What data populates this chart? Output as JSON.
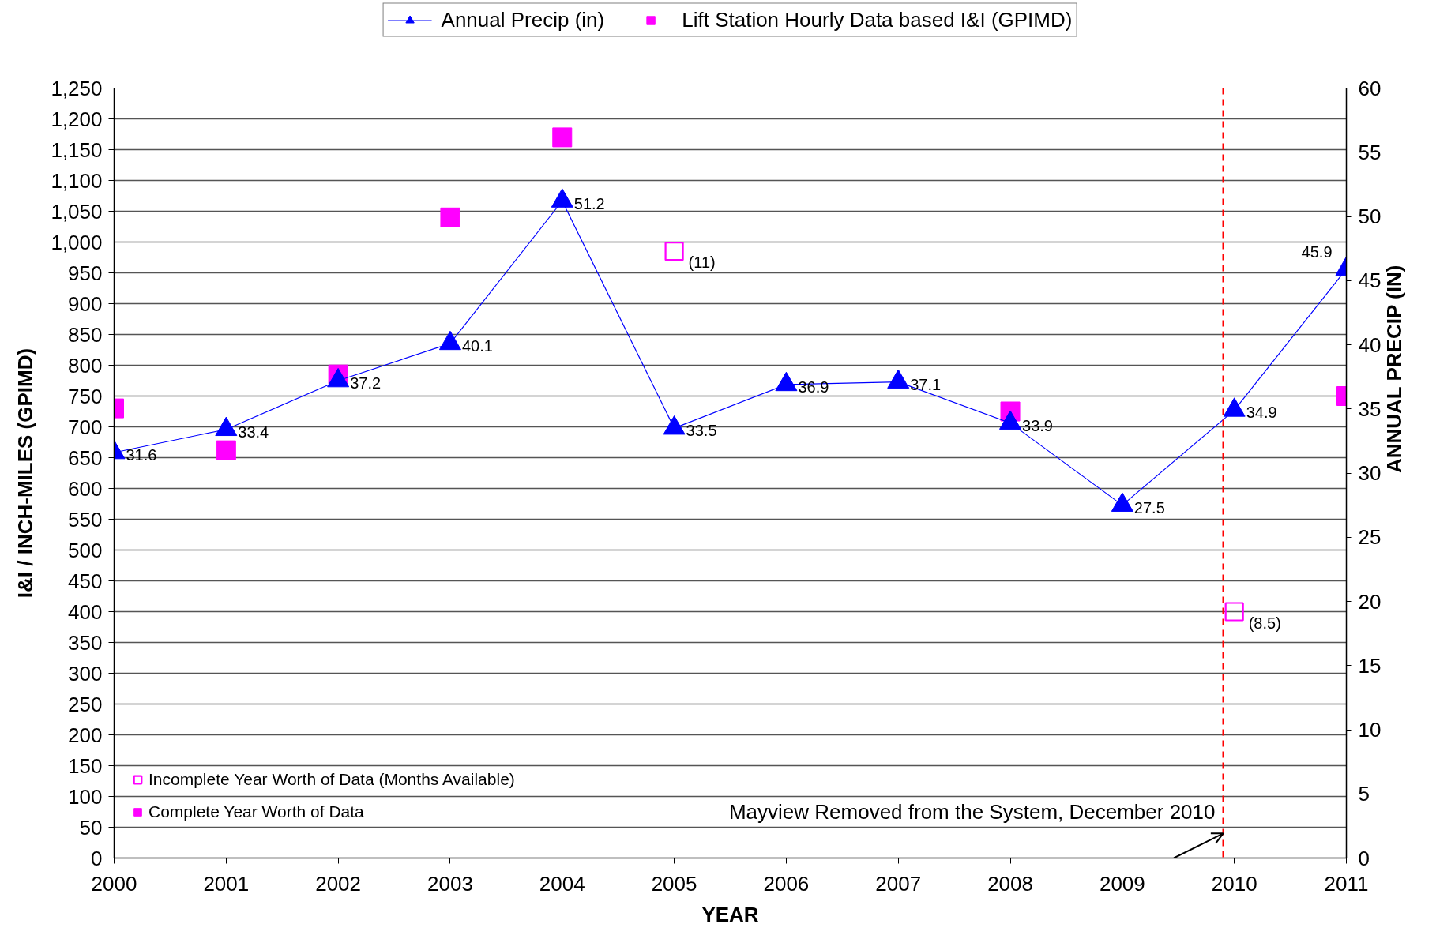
{
  "chart_data": {
    "type": "line",
    "xlabel": "YEAR",
    "ylabel": "I&I / INCH-MILES (GPIMD)",
    "y2label": "ANNUAL PRECIP (IN)",
    "x": [
      2000,
      2001,
      2002,
      2003,
      2004,
      2005,
      2006,
      2007,
      2008,
      2009,
      2010,
      2011
    ],
    "series": [
      {
        "name": "Annual Precip (in)",
        "axis": "y2",
        "color": "#0000ff",
        "marker": "triangle",
        "values": [
          31.6,
          33.4,
          37.2,
          40.1,
          51.2,
          33.5,
          36.9,
          37.1,
          33.9,
          27.5,
          34.9,
          45.9
        ],
        "value_labels": [
          "31.6",
          "33.4",
          "37.2",
          "40.1",
          "51.2",
          "33.5",
          "36.9",
          "37.1",
          "33.9",
          "27.5",
          "34.9",
          "45.9"
        ]
      },
      {
        "name": "Lift Station Hourly Data based I&I (GPIMD)",
        "type": "scatter",
        "color": "#ff00ff",
        "marker": "square",
        "values": [
          730,
          662,
          785,
          1040,
          1170,
          null,
          null,
          null,
          725,
          null,
          null,
          750
        ]
      },
      {
        "name": "Incomplete Year Worth of Data (Months Available)",
        "type": "scatter",
        "color": "#ff00ff",
        "marker": "square_open",
        "values": [
          null,
          null,
          null,
          null,
          null,
          985,
          null,
          null,
          null,
          null,
          400,
          null
        ]
      }
    ],
    "annotations": [
      {
        "text": "(11)",
        "x": 2005,
        "y": 985
      },
      {
        "text": "(8.5)",
        "x": 2010,
        "y": 400
      },
      "Complete Year Worth of Data"
    ],
    "ref_lines": [
      {
        "axis": "x",
        "value": 2009.9,
        "label": "Mayview Removed from the System, December 2010",
        "color": "#ff0000",
        "line_style": "dashed"
      }
    ],
    "xlim": [
      2000,
      2011
    ],
    "xticks": [
      2000,
      2001,
      2002,
      2003,
      2004,
      2005,
      2006,
      2007,
      2008,
      2009,
      2010,
      2011
    ],
    "ylim": [
      0,
      1250
    ],
    "yticks": [
      0,
      50,
      100,
      150,
      200,
      250,
      300,
      350,
      400,
      450,
      500,
      550,
      600,
      650,
      700,
      750,
      800,
      850,
      900,
      950,
      {
        "value": 1000,
        "label": "1,000"
      },
      {
        "value": 1050,
        "label": "1,050"
      },
      {
        "value": 1100,
        "label": "1,100"
      },
      {
        "value": 1150,
        "label": "1,150"
      },
      {
        "value": 1200,
        "label": "1,200"
      },
      {
        "value": 1250,
        "label": "1,250"
      }
    ],
    "y2lim": [
      0,
      60
    ],
    "y2ticks": [
      0,
      5,
      10,
      15,
      20,
      25,
      30,
      35,
      40,
      45,
      50,
      55,
      60
    ],
    "grid": "y",
    "legend": "top"
  }
}
